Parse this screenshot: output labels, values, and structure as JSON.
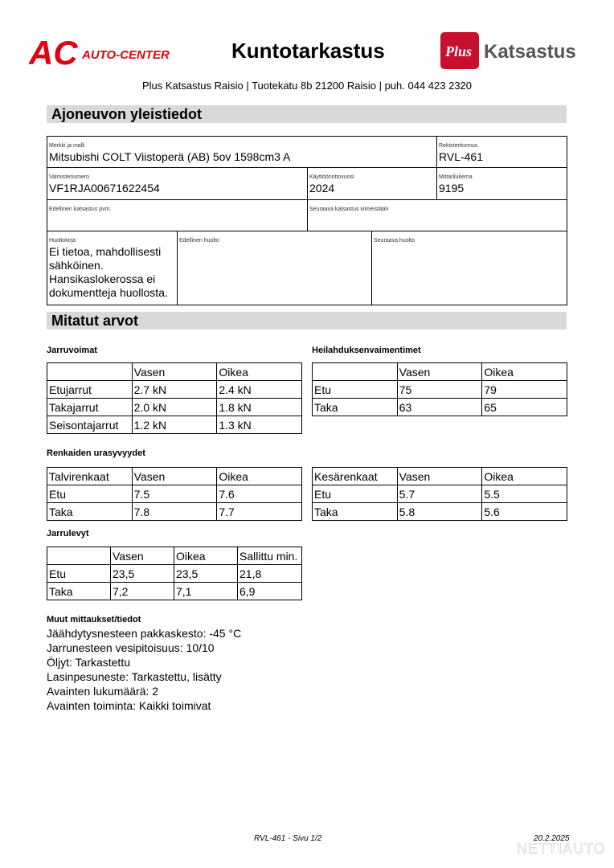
{
  "header": {
    "logo_left": "AC AUTO-CENTER",
    "title": "Kuntotarkastus",
    "logo_right": "Plus Katsastus",
    "address": "Plus Katsastus Raisio | Tuotekatu 8b 21200 Raisio | puh. 044 423 2320"
  },
  "colors": {
    "brand_red": "#e3000f",
    "section_gray": "#d9d9d9"
  },
  "general": {
    "heading": "Ajoneuvon yleistiedot",
    "make_label": "Merkki ja malli",
    "make": "Mitsubishi COLT Viistoperä (AB) 5ov 1598cm3 A",
    "reg_label": "Rekisteritunnus",
    "reg": "RVL-461",
    "vin_label": "Valmistenumero",
    "vin": "VF1RJA00671622454",
    "year_label": "Käyttöönottovuosi",
    "year": "2024",
    "odo_label": "Mittarilukema",
    "odo": "9195",
    "prev_insp_label": "Edellinen katsastus pvm.",
    "next_insp_label": "Seuraava katsastus viimeistään",
    "service_book_label": "Huoltokirja",
    "service_book": "Ei tietoa, mahdollisesti sähköinen. Hansikaslokerossa ei dokumentteja huollosta.",
    "prev_service_label": "Edellinen huolto",
    "next_service_label": "Seuraava huolto"
  },
  "measured": {
    "heading": "Mitatut arvot",
    "brakes": {
      "title": "Jarruvoimat",
      "rows": [
        [
          "",
          "Vasen",
          "Oikea"
        ],
        [
          "Etujarrut",
          "2.7 kN",
          "2.4 kN"
        ],
        [
          "Takajarrut",
          "2.0 kN",
          "1.8 kN"
        ],
        [
          "Seisontajarrut",
          "1.2 kN",
          "1.3 kN"
        ]
      ]
    },
    "shocks": {
      "title": "Heilahduksenvaimentimet",
      "rows": [
        [
          "",
          "Vasen",
          "Oikea"
        ],
        [
          "Etu",
          "75",
          "79"
        ],
        [
          "Taka",
          "63",
          "65"
        ]
      ]
    },
    "tires_title": "Renkaiden urasyvyydet",
    "winter": {
      "rows": [
        [
          "Talvirenkaat",
          "Vasen",
          "Oikea"
        ],
        [
          "Etu",
          "7.5",
          "7.6"
        ],
        [
          "Taka",
          "7.8",
          "7.7"
        ]
      ]
    },
    "summer": {
      "rows": [
        [
          "Kesärenkaat",
          "Vasen",
          "Oikea"
        ],
        [
          "Etu",
          "5.7",
          "5.5"
        ],
        [
          "Taka",
          "5.8",
          "5.6"
        ]
      ]
    },
    "discs": {
      "title": "Jarrulevyt",
      "rows": [
        [
          "",
          "Vasen",
          "Oikea",
          "Sallittu min."
        ],
        [
          "Etu",
          "23,5",
          "23,5",
          "21,8"
        ],
        [
          "Taka",
          "7,2",
          "7,1",
          "6,9"
        ]
      ]
    },
    "other": {
      "title": "Muut mittaukset/tiedot",
      "lines": [
        "Jäähdytysnesteen pakkaskesto: -45 °C",
        "Jarrunesteen vesipitoisuus: 10/10",
        "Öljyt: Tarkastettu",
        "Lasinpesuneste: Tarkastettu, lisätty",
        "Avainten lukumäärä: 2",
        "Avainten toiminta: Kaikki toimivat"
      ]
    }
  },
  "footer": {
    "page": "RVL-461 - Sivu 1/2",
    "date": "20.2.2025",
    "watermark": "NETTIAUTO"
  }
}
